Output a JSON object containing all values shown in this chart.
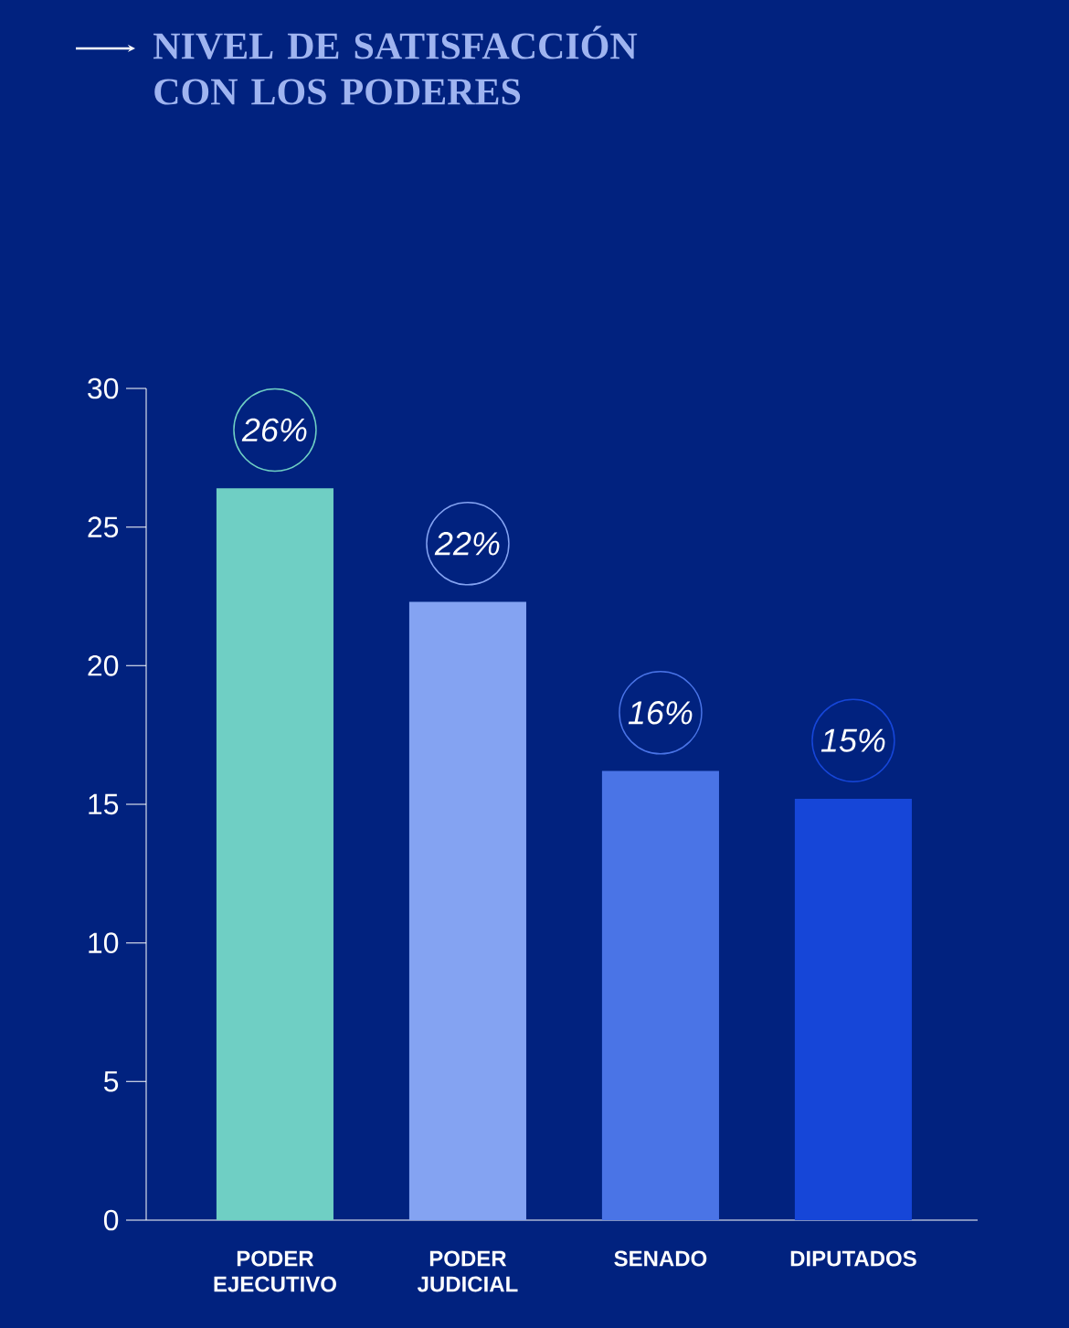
{
  "chart_data": {
    "type": "bar",
    "title": "NIVEL DE SATISFACCIÓN CON LOS PODERES",
    "categories": [
      "PODER EJECUTIVO",
      "PODER JUDICIAL",
      "SENADO",
      "DIPUTADOS"
    ],
    "values": [
      26.4,
      22.3,
      16.2,
      15.2
    ],
    "value_labels": [
      "26%",
      "22%",
      "16%",
      "15%"
    ],
    "colors": [
      "#6fcfc4",
      "#84a3f2",
      "#4a74e6",
      "#1646d8"
    ],
    "ylim": [
      0,
      30
    ],
    "yticks": [
      0,
      5,
      10,
      15,
      20,
      25,
      30
    ],
    "grid": false
  }
}
